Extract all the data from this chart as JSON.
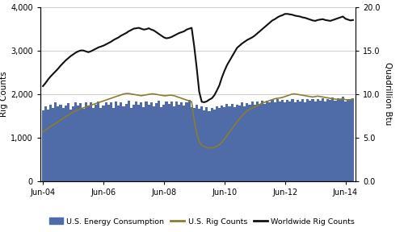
{
  "ylabel_left": "Rig Counts",
  "ylabel_right": "Quadrillion Btu",
  "ylim_left": [
    0,
    4000
  ],
  "yticks_left": [
    0,
    1000,
    2000,
    3000,
    4000
  ],
  "yticks_right": [
    0.0,
    5.0,
    10.0,
    15.0,
    20.0
  ],
  "xtick_labels": [
    "Jun-04",
    "Jun-06",
    "Jun-08",
    "Jun-10",
    "Jun-12",
    "Jun-14"
  ],
  "bar_color": "#4F6CA8",
  "us_rig_color": "#8B7D30",
  "world_rig_color": "#111111",
  "background_color": "#FFFFFF",
  "grid_color": "#C8C8C8",
  "legend_labels": [
    "U.S. Energy Consumption",
    "U.S. Rig Counts",
    "Worldwide Rig Counts"
  ],
  "energy_consumption": [
    1630,
    1720,
    1640,
    1760,
    1680,
    1800,
    1710,
    1750,
    1670,
    1730,
    1790,
    1640,
    1720,
    1800,
    1730,
    1790,
    1660,
    1810,
    1740,
    1800,
    1680,
    1760,
    1820,
    1670,
    1740,
    1810,
    1750,
    1800,
    1680,
    1820,
    1740,
    1800,
    1710,
    1780,
    1840,
    1680,
    1750,
    1820,
    1760,
    1810,
    1700,
    1830,
    1760,
    1810,
    1720,
    1790,
    1850,
    1690,
    1760,
    1830,
    1770,
    1820,
    1710,
    1830,
    1760,
    1810,
    1730,
    1800,
    1860,
    1700,
    1680,
    1750,
    1660,
    1720,
    1630,
    1700,
    1610,
    1680,
    1640,
    1710,
    1670,
    1730,
    1700,
    1770,
    1710,
    1780,
    1690,
    1760,
    1730,
    1800,
    1720,
    1790,
    1760,
    1830,
    1750,
    1820,
    1770,
    1840,
    1780,
    1850,
    1800,
    1870,
    1810,
    1880,
    1820,
    1870,
    1800,
    1870,
    1820,
    1880,
    1810,
    1870,
    1830,
    1880,
    1810,
    1880,
    1840,
    1890,
    1820,
    1890,
    1850,
    1900,
    1830,
    1890,
    1870,
    1920,
    1840,
    1900,
    1880,
    1940,
    1820,
    1880,
    1860,
    1900
  ],
  "us_rig_counts": [
    1130,
    1170,
    1210,
    1250,
    1290,
    1320,
    1360,
    1400,
    1440,
    1480,
    1510,
    1550,
    1580,
    1610,
    1640,
    1660,
    1680,
    1700,
    1720,
    1740,
    1760,
    1780,
    1800,
    1820,
    1840,
    1860,
    1880,
    1900,
    1920,
    1940,
    1960,
    1980,
    2000,
    2010,
    2010,
    2000,
    1990,
    1980,
    1970,
    1960,
    1970,
    1980,
    1990,
    2000,
    2000,
    1990,
    1980,
    1970,
    1960,
    1960,
    1970,
    1970,
    1960,
    1940,
    1920,
    1900,
    1880,
    1860,
    1840,
    1820,
    1400,
    1100,
    900,
    820,
    790,
    770,
    760,
    760,
    770,
    800,
    840,
    890,
    960,
    1040,
    1120,
    1200,
    1280,
    1360,
    1430,
    1500,
    1560,
    1610,
    1650,
    1680,
    1700,
    1730,
    1760,
    1790,
    1810,
    1830,
    1850,
    1870,
    1890,
    1900,
    1910,
    1920,
    1940,
    1960,
    1980,
    2000,
    2000,
    1990,
    1980,
    1970,
    1960,
    1950,
    1940,
    1930,
    1940,
    1950,
    1940,
    1930,
    1920,
    1910,
    1900,
    1890,
    1880,
    1870,
    1880,
    1890,
    1870,
    1860,
    1870,
    1880
  ],
  "worldwide_rig_counts": [
    2180,
    2250,
    2330,
    2400,
    2460,
    2520,
    2580,
    2650,
    2710,
    2770,
    2820,
    2870,
    2910,
    2950,
    2980,
    3000,
    3000,
    2980,
    2960,
    2980,
    3010,
    3040,
    3070,
    3090,
    3110,
    3140,
    3170,
    3200,
    3240,
    3270,
    3300,
    3340,
    3370,
    3400,
    3440,
    3470,
    3500,
    3510,
    3520,
    3500,
    3480,
    3490,
    3510,
    3480,
    3460,
    3420,
    3380,
    3340,
    3300,
    3280,
    3290,
    3310,
    3340,
    3370,
    3400,
    3420,
    3440,
    3480,
    3500,
    3520,
    3100,
    2600,
    2050,
    1820,
    1810,
    1830,
    1870,
    1900,
    1970,
    2080,
    2200,
    2380,
    2530,
    2660,
    2760,
    2860,
    2960,
    3060,
    3110,
    3160,
    3200,
    3240,
    3270,
    3300,
    3340,
    3390,
    3440,
    3490,
    3540,
    3590,
    3640,
    3690,
    3720,
    3760,
    3790,
    3810,
    3840,
    3840,
    3830,
    3820,
    3800,
    3790,
    3780,
    3760,
    3750,
    3730,
    3710,
    3690,
    3680,
    3700,
    3710,
    3720,
    3700,
    3690,
    3680,
    3700,
    3720,
    3740,
    3760,
    3780,
    3730,
    3710,
    3690,
    3700
  ]
}
